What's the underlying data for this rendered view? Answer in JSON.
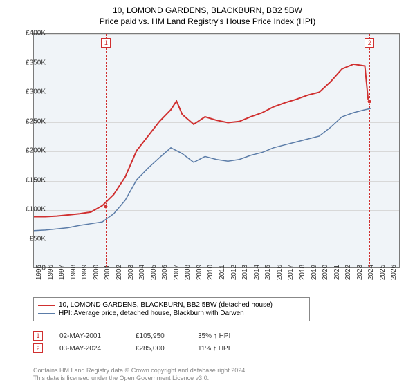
{
  "title": {
    "main": "10, LOMOND GARDENS, BLACKBURN, BB2 5BW",
    "sub": "Price paid vs. HM Land Registry's House Price Index (HPI)"
  },
  "chart": {
    "type": "line",
    "background_color": "#f0f4f8",
    "grid_color": "#d8d8d8",
    "border_color": "#7a7a7a",
    "y_axis": {
      "min": 0,
      "max": 400000,
      "step": 50000,
      "labels": [
        "£0",
        "£50K",
        "£100K",
        "£150K",
        "£200K",
        "£250K",
        "£300K",
        "£350K",
        "£400K"
      ],
      "label_fontsize": 10
    },
    "x_axis": {
      "min": 1995,
      "max": 2027,
      "ticks": [
        1995,
        1996,
        1997,
        1998,
        1999,
        2000,
        2001,
        2002,
        2003,
        2004,
        2005,
        2006,
        2007,
        2008,
        2009,
        2010,
        2011,
        2012,
        2013,
        2014,
        2015,
        2016,
        2017,
        2018,
        2019,
        2020,
        2021,
        2022,
        2023,
        2024,
        2025,
        2026
      ],
      "label_fontsize": 10
    },
    "series": [
      {
        "name": "property",
        "label": "10, LOMOND GARDENS, BLACKBURN, BB2 5BW (detached house)",
        "color": "#d03030",
        "line_width": 2,
        "data": [
          [
            1995,
            87000
          ],
          [
            1996,
            87000
          ],
          [
            1997,
            88000
          ],
          [
            1998,
            90000
          ],
          [
            1999,
            92000
          ],
          [
            2000,
            95000
          ],
          [
            2001,
            105950
          ],
          [
            2002,
            125000
          ],
          [
            2003,
            155000
          ],
          [
            2004,
            200000
          ],
          [
            2005,
            225000
          ],
          [
            2006,
            250000
          ],
          [
            2007,
            270000
          ],
          [
            2007.5,
            285000
          ],
          [
            2008,
            262000
          ],
          [
            2009,
            245000
          ],
          [
            2010,
            258000
          ],
          [
            2011,
            252000
          ],
          [
            2012,
            248000
          ],
          [
            2013,
            250000
          ],
          [
            2014,
            258000
          ],
          [
            2015,
            265000
          ],
          [
            2016,
            275000
          ],
          [
            2017,
            282000
          ],
          [
            2018,
            288000
          ],
          [
            2019,
            295000
          ],
          [
            2020,
            300000
          ],
          [
            2021,
            318000
          ],
          [
            2022,
            340000
          ],
          [
            2023,
            348000
          ],
          [
            2024,
            345000
          ],
          [
            2024.3,
            285000
          ],
          [
            2024.5,
            280000
          ]
        ]
      },
      {
        "name": "hpi",
        "label": "HPI: Average price, detached house, Blackburn with Darwen",
        "color": "#5b7ca8",
        "line_width": 1.5,
        "data": [
          [
            1995,
            63000
          ],
          [
            1996,
            64000
          ],
          [
            1997,
            66000
          ],
          [
            1998,
            68000
          ],
          [
            1999,
            72000
          ],
          [
            2000,
            75000
          ],
          [
            2001,
            78000
          ],
          [
            2002,
            92000
          ],
          [
            2003,
            115000
          ],
          [
            2004,
            150000
          ],
          [
            2005,
            170000
          ],
          [
            2006,
            188000
          ],
          [
            2007,
            205000
          ],
          [
            2008,
            195000
          ],
          [
            2009,
            180000
          ],
          [
            2010,
            190000
          ],
          [
            2011,
            185000
          ],
          [
            2012,
            182000
          ],
          [
            2013,
            185000
          ],
          [
            2014,
            192000
          ],
          [
            2015,
            197000
          ],
          [
            2016,
            205000
          ],
          [
            2017,
            210000
          ],
          [
            2018,
            215000
          ],
          [
            2019,
            220000
          ],
          [
            2020,
            225000
          ],
          [
            2021,
            240000
          ],
          [
            2022,
            258000
          ],
          [
            2023,
            265000
          ],
          [
            2024,
            270000
          ],
          [
            2024.5,
            272000
          ]
        ]
      }
    ],
    "markers": [
      {
        "n": "1",
        "year": 2001.3,
        "price": 105950
      },
      {
        "n": "2",
        "year": 2024.3,
        "price": 285000
      }
    ]
  },
  "legend": {
    "items": [
      {
        "color": "#d03030",
        "label": "10, LOMOND GARDENS, BLACKBURN, BB2 5BW (detached house)"
      },
      {
        "color": "#5b7ca8",
        "label": "HPI: Average price, detached house, Blackburn with Darwen"
      }
    ]
  },
  "sales": [
    {
      "n": "1",
      "date": "02-MAY-2001",
      "price": "£105,950",
      "diff": "35% ↑ HPI"
    },
    {
      "n": "2",
      "date": "03-MAY-2024",
      "price": "£285,000",
      "diff": "11% ↑ HPI"
    }
  ],
  "footer": {
    "line1": "Contains HM Land Registry data © Crown copyright and database right 2024.",
    "line2": "This data is licensed under the Open Government Licence v3.0."
  }
}
